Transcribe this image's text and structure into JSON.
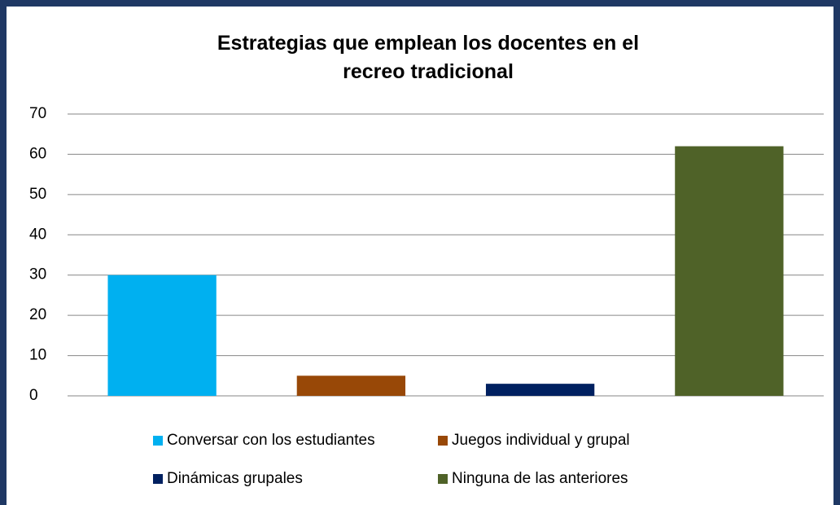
{
  "chart_data": {
    "type": "bar",
    "title": "Estrategias que emplean los docentes en el recreo tradicional",
    "categories": [
      null
    ],
    "series": [
      {
        "name": "Conversar con los estudiantes",
        "color": "#00b0f0",
        "values": [
          30
        ]
      },
      {
        "name": "Juegos individual y grupal",
        "color": "#984807",
        "values": [
          5
        ]
      },
      {
        "name": "Dinámicas grupales",
        "color": "#002060",
        "values": [
          3
        ]
      },
      {
        "name": "Ninguna de las anteriores",
        "color": "#4f6228",
        "values": [
          62
        ]
      }
    ],
    "ylim": [
      0,
      70
    ],
    "yticks": [
      0,
      10,
      20,
      30,
      40,
      50,
      60,
      70
    ],
    "grid": true,
    "legend": "bottom"
  }
}
